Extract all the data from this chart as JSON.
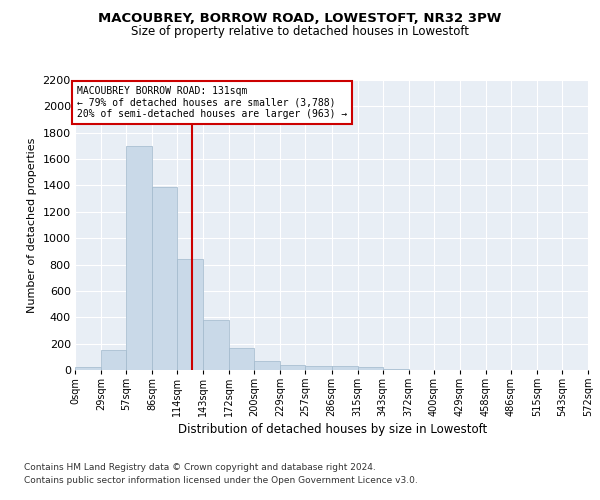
{
  "title1": "MACOUBREY, BORROW ROAD, LOWESTOFT, NR32 3PW",
  "title2": "Size of property relative to detached houses in Lowestoft",
  "xlabel": "Distribution of detached houses by size in Lowestoft",
  "ylabel": "Number of detached properties",
  "bin_edges": [
    0,
    29,
    57,
    86,
    114,
    143,
    172,
    200,
    229,
    257,
    286,
    315,
    343,
    372,
    400,
    429,
    458,
    486,
    515,
    543,
    572
  ],
  "bar_heights": [
    20,
    155,
    1700,
    1390,
    840,
    380,
    165,
    65,
    40,
    28,
    28,
    20,
    10,
    0,
    0,
    0,
    0,
    0,
    0,
    0
  ],
  "bar_color": "#c9d9e8",
  "bar_edgecolor": "#a0b8cc",
  "property_size": 131,
  "red_line_color": "#cc0000",
  "annotation_line1": "MACOUBREY BORROW ROAD: 131sqm",
  "annotation_line2": "← 79% of detached houses are smaller (3,788)",
  "annotation_line3": "20% of semi-detached houses are larger (963) →",
  "annotation_box_color": "#ffffff",
  "annotation_box_edgecolor": "#cc0000",
  "ylim": [
    0,
    2200
  ],
  "yticks": [
    0,
    200,
    400,
    600,
    800,
    1000,
    1200,
    1400,
    1600,
    1800,
    2000,
    2200
  ],
  "tick_labels": [
    "0sqm",
    "29sqm",
    "57sqm",
    "86sqm",
    "114sqm",
    "143sqm",
    "172sqm",
    "200sqm",
    "229sqm",
    "257sqm",
    "286sqm",
    "315sqm",
    "343sqm",
    "372sqm",
    "400sqm",
    "429sqm",
    "458sqm",
    "486sqm",
    "515sqm",
    "543sqm",
    "572sqm"
  ],
  "footer1": "Contains HM Land Registry data © Crown copyright and database right 2024.",
  "footer2": "Contains public sector information licensed under the Open Government Licence v3.0.",
  "plot_background": "#e8eef5",
  "fig_background": "#ffffff",
  "grid_color": "#ffffff",
  "annotation_fontsize": 7.0,
  "title1_fontsize": 9.5,
  "title2_fontsize": 8.5,
  "ylabel_fontsize": 8.0,
  "xlabel_fontsize": 8.5,
  "footer_fontsize": 6.5,
  "ytick_fontsize": 8.0,
  "xtick_fontsize": 7.0
}
